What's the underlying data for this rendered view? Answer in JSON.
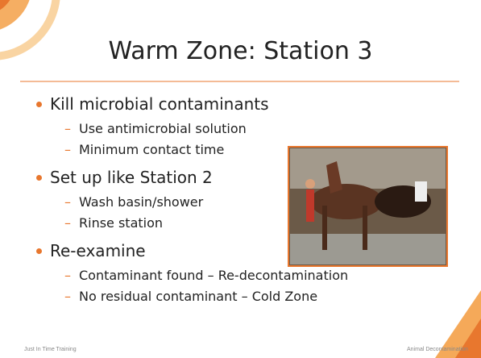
{
  "title": "Warm Zone: Station 3",
  "bullets": [
    {
      "text": "Kill microbial contaminants",
      "sub": [
        "Use antimicrobial solution",
        "Minimum contact time"
      ]
    },
    {
      "text": "Set up like Station 2",
      "sub": [
        "Wash basin/shower",
        "Rinse station"
      ]
    },
    {
      "text": "Re-examine",
      "sub": [
        "Contaminant found – Re-decontamination",
        "No residual contaminant – Cold Zone"
      ]
    }
  ],
  "footer": {
    "left": "Just In Time Training",
    "right": "Animal Decontamination"
  }
}
